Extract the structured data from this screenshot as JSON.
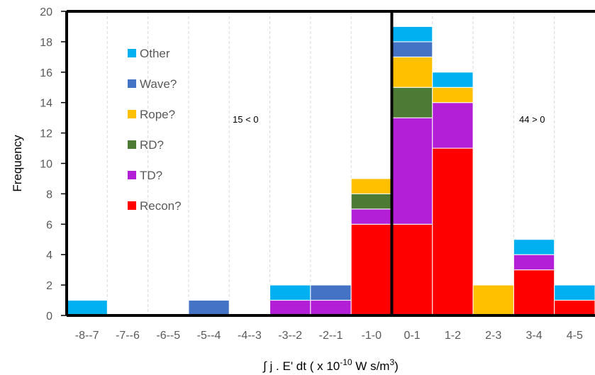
{
  "chart_data": {
    "type": "bar",
    "stacked": true,
    "categories": [
      "-8--7",
      "-7--6",
      "-6--5",
      "-5--4",
      "-4--3",
      "-3--2",
      "-2--1",
      "-1-0",
      "0-1",
      "1-2",
      "2-3",
      "3-4",
      "4-5"
    ],
    "series": [
      {
        "name": "Recon?",
        "color": "#ff0000",
        "values": [
          0,
          0,
          0,
          0,
          0,
          0,
          0,
          6,
          6,
          11,
          0,
          3,
          1
        ]
      },
      {
        "name": "TD?",
        "color": "#b31fd6",
        "values": [
          0,
          0,
          0,
          0,
          0,
          1,
          1,
          1,
          7,
          3,
          0,
          1,
          0
        ]
      },
      {
        "name": "RD?",
        "color": "#4d7a34",
        "values": [
          0,
          0,
          0,
          0,
          0,
          0,
          0,
          1,
          2,
          0,
          0,
          0,
          0
        ]
      },
      {
        "name": "Rope?",
        "color": "#ffc000",
        "values": [
          0,
          0,
          0,
          0,
          0,
          0,
          0,
          1,
          2,
          1,
          2,
          0,
          0
        ]
      },
      {
        "name": "Wave?",
        "color": "#4472c4",
        "values": [
          0,
          0,
          0,
          1,
          0,
          0,
          1,
          0,
          1,
          0,
          0,
          0,
          0
        ]
      },
      {
        "name": "Other",
        "color": "#00b0f0",
        "values": [
          1,
          0,
          0,
          0,
          0,
          1,
          0,
          0,
          1,
          1,
          0,
          1,
          1
        ]
      }
    ],
    "legend_order": [
      "Other",
      "Wave?",
      "Rope?",
      "RD?",
      "TD?",
      "Recon?"
    ],
    "legend_position": "upper-left",
    "ylabel": "Frequency",
    "xlabel": "∫ j . E'  dt ( x 10",
    "xlabel_exp": "-10",
    "xlabel_tail": " W s/m",
    "xlabel_exp2": "3",
    "xlabel_end": ")",
    "ylim": [
      0,
      20
    ],
    "yticks": [
      0,
      2,
      4,
      6,
      8,
      10,
      12,
      14,
      16,
      18,
      20
    ],
    "vertical_line_between": [
      "-1-0",
      "0-1"
    ],
    "grid": "vertical",
    "annotations": [
      {
        "text": "15 < 0"
      },
      {
        "text": "44 > 0"
      }
    ]
  }
}
